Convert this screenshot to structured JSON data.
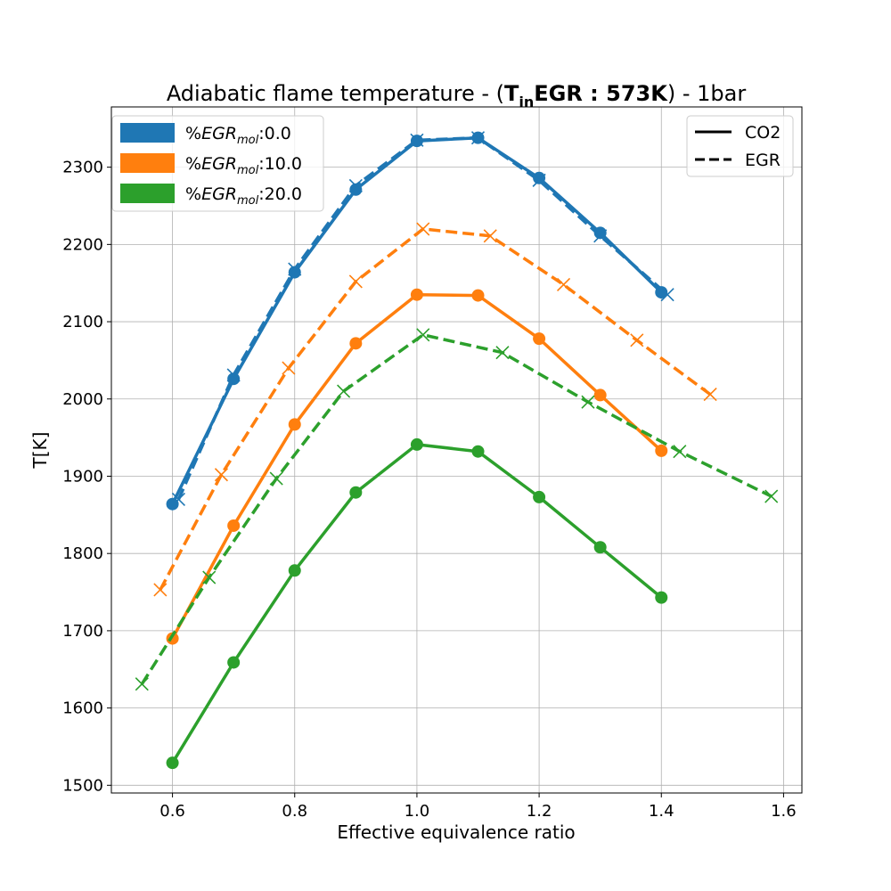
{
  "chart_data": {
    "type": "line",
    "title": {
      "prefix": "Adiabatic flame temperature - (",
      "bold_T": "T",
      "bold_sub": "in",
      "bold_rest": "EGR : 573K",
      "suffix": ") - 1bar"
    },
    "xlabel": "Effective equivalence ratio",
    "ylabel": "T[K]",
    "xlim": [
      0.5,
      1.63
    ],
    "ylim": [
      1490,
      2378
    ],
    "xticks": [
      0.6,
      0.8,
      1.0,
      1.2,
      1.4,
      1.6
    ],
    "xtick_labels": [
      "0.6",
      "0.8",
      "1.0",
      "1.2",
      "1.4",
      "1.6"
    ],
    "yticks": [
      1500,
      1600,
      1700,
      1800,
      1900,
      2000,
      2100,
      2200,
      2300
    ],
    "ytick_labels": [
      "1500",
      "1600",
      "1700",
      "1800",
      "1900",
      "2000",
      "2100",
      "2200",
      "2300"
    ],
    "grid": true,
    "series": [
      {
        "name": "%EGR_mol:0.0 CO2",
        "group": 0,
        "style": "solid",
        "marker": "circle",
        "color": "#1f77b4",
        "x": [
          0.6,
          0.7,
          0.8,
          0.9,
          1.0,
          1.1,
          1.2,
          1.3,
          1.4
        ],
        "y": [
          1864,
          2026,
          2164,
          2271,
          2334,
          2338,
          2286,
          2215,
          2138
        ]
      },
      {
        "name": "%EGR_mol:0.0 EGR",
        "group": 0,
        "style": "dashed",
        "marker": "x",
        "color": "#1f77b4",
        "x": [
          0.61,
          0.7,
          0.8,
          0.9,
          1.0,
          1.1,
          1.2,
          1.3,
          1.41
        ],
        "y": [
          1870,
          2031,
          2168,
          2276,
          2335,
          2338,
          2283,
          2211,
          2135
        ]
      },
      {
        "name": "%EGR_mol:10.0 CO2",
        "group": 1,
        "style": "solid",
        "marker": "circle",
        "color": "#ff7f0e",
        "x": [
          0.6,
          0.7,
          0.8,
          0.9,
          1.0,
          1.1,
          1.2,
          1.3,
          1.4
        ],
        "y": [
          1690,
          1836,
          1967,
          2072,
          2135,
          2134,
          2078,
          2005,
          1933
        ]
      },
      {
        "name": "%EGR_mol:10.0 EGR",
        "group": 1,
        "style": "dashed",
        "marker": "x",
        "color": "#ff7f0e",
        "x": [
          0.58,
          0.68,
          0.79,
          0.9,
          1.01,
          1.12,
          1.24,
          1.36,
          1.48
        ],
        "y": [
          1753,
          1902,
          2040,
          2152,
          2220,
          2211,
          2148,
          2076,
          2006
        ]
      },
      {
        "name": "%EGR_mol:20.0 CO2",
        "group": 2,
        "style": "solid",
        "marker": "circle",
        "color": "#2ca02c",
        "x": [
          0.6,
          0.7,
          0.8,
          0.9,
          1.0,
          1.1,
          1.2,
          1.3,
          1.4
        ],
        "y": [
          1529,
          1659,
          1778,
          1879,
          1941,
          1932,
          1873,
          1808,
          1743
        ]
      },
      {
        "name": "%EGR_mol:20.0 EGR",
        "group": 2,
        "style": "dashed",
        "marker": "x",
        "color": "#2ca02c",
        "x": [
          0.55,
          0.66,
          0.77,
          0.88,
          1.01,
          1.14,
          1.28,
          1.43,
          1.58
        ],
        "y": [
          1631,
          1769,
          1897,
          2010,
          2083,
          2060,
          1996,
          1932,
          1874
        ]
      }
    ],
    "legend_groups": {
      "location": "top-left",
      "items": [
        {
          "prefix": "%",
          "italic": "EGR",
          "sub": "mol",
          "suffix": ":0.0",
          "color": "#1f77b4"
        },
        {
          "prefix": "%",
          "italic": "EGR",
          "sub": "mol",
          "suffix": ":10.0",
          "color": "#ff7f0e"
        },
        {
          "prefix": "%",
          "italic": "EGR",
          "sub": "mol",
          "suffix": ":20.0",
          "color": "#2ca02c"
        }
      ]
    },
    "legend_styles": {
      "location": "top-right",
      "items": [
        {
          "label": "CO2",
          "style": "solid"
        },
        {
          "label": "EGR",
          "style": "dashed"
        }
      ]
    }
  }
}
